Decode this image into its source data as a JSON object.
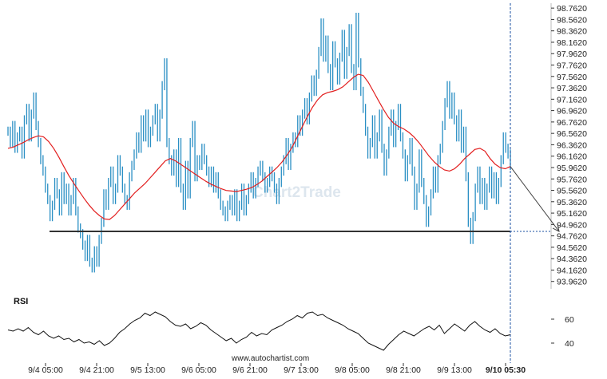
{
  "chart_data": {
    "type": "bar",
    "title": "",
    "watermark": "Chart2Trade",
    "website": "www.autochartist.com",
    "colors": {
      "bars": "#2a8fc4",
      "moving_average": "#e21f1f",
      "support_line": "#333333",
      "projection_arrow": "#444444",
      "projection_guide": "#1a4fa0"
    },
    "price_axis": {
      "range": [
        93.86,
        98.82
      ],
      "ticks": [
        "98.7620",
        "98.5620",
        "98.3620",
        "98.1620",
        "97.9620",
        "97.7620",
        "97.5620",
        "97.3620",
        "97.1620",
        "96.9620",
        "96.7620",
        "96.5620",
        "96.3620",
        "96.1620",
        "95.9620",
        "95.7620",
        "95.5620",
        "95.3620",
        "95.1620",
        "94.9620",
        "94.7620",
        "94.5620",
        "94.3620",
        "94.1620",
        "93.9620"
      ]
    },
    "time_axis": {
      "labels": [
        "9/4 05:00",
        "9/4 21:00",
        "9/5 13:00",
        "9/6 05:00",
        "9/6 21:00",
        "9/7 13:00",
        "9/8 05:00",
        "9/8 21:00",
        "9/9 13:00",
        "9/10 05:30"
      ],
      "last_label_bold": true
    },
    "support_level": 94.84,
    "projection": {
      "start_price": 95.98,
      "target_price": 94.84
    },
    "price_series": [
      96.6,
      96.4,
      96.7,
      96.3,
      96.5,
      96.6,
      96.2,
      96.8,
      97.0,
      96.5,
      96.9,
      97.2,
      96.7,
      96.4,
      96.1,
      95.9,
      95.6,
      95.4,
      95.1,
      95.3,
      95.7,
      95.5,
      95.2,
      95.8,
      95.4,
      95.6,
      95.2,
      95.4,
      95.7,
      95.2,
      94.9,
      94.8,
      94.6,
      94.4,
      94.7,
      94.3,
      94.2,
      94.5,
      94.3,
      94.7,
      95.0,
      95.5,
      95.3,
      95.7,
      95.9,
      95.4,
      95.6,
      96.1,
      95.9,
      95.6,
      95.4,
      95.3,
      95.8,
      96.0,
      96.2,
      96.5,
      96.3,
      96.8,
      96.5,
      96.9,
      96.4,
      96.6,
      96.8,
      97.0,
      96.5,
      96.9,
      97.4,
      97.8,
      96.4,
      96.1,
      95.9,
      96.2,
      95.7,
      96.4,
      95.6,
      95.3,
      96.0,
      95.5,
      96.4,
      96.7,
      95.8,
      96.1,
      96.0,
      96.3,
      96.1,
      95.9,
      95.7,
      95.9,
      95.6,
      95.8,
      95.5,
      95.3,
      95.2,
      95.1,
      95.3,
      95.4,
      95.2,
      95.5,
      95.1,
      95.3,
      95.6,
      95.2,
      95.4,
      95.6,
      95.8,
      95.5,
      95.7,
      95.9,
      96.0,
      95.8,
      95.6,
      95.7,
      95.9,
      95.8,
      95.6,
      95.4,
      95.7,
      95.9,
      96.1,
      96.4,
      96.0,
      96.3,
      96.5,
      96.4,
      96.8,
      96.6,
      96.9,
      97.1,
      96.8,
      97.2,
      97.5,
      97.3,
      97.6,
      98.0,
      98.5,
      97.9,
      98.2,
      97.7,
      97.4,
      98.1,
      97.8,
      97.5,
      97.9,
      98.3,
      97.6,
      98.0,
      98.4,
      97.7,
      97.4,
      98.6,
      97.8,
      97.3,
      97.0,
      96.6,
      96.2,
      96.4,
      96.8,
      96.2,
      96.5,
      96.9,
      96.3,
      95.9,
      96.2,
      96.6,
      96.9,
      96.4,
      96.7,
      97.0,
      96.5,
      96.2,
      95.8,
      96.1,
      96.4,
      95.9,
      95.3,
      95.6,
      96.2,
      95.7,
      95.4,
      95.0,
      95.2,
      95.5,
      95.9,
      95.6,
      96.1,
      96.3,
      96.7,
      97.1,
      97.4,
      96.9,
      97.2,
      96.8,
      96.5,
      96.9,
      96.3,
      96.6,
      95.8,
      95.0,
      94.7,
      95.1,
      95.6,
      95.9,
      95.4,
      95.7,
      95.3,
      95.6,
      95.9,
      95.5,
      95.8,
      95.4,
      95.7,
      96.1,
      96.5,
      96.3,
      96.2,
      96.0
    ],
    "ma_series": [
      96.3,
      96.32,
      96.36,
      96.4,
      96.45,
      96.49,
      96.52,
      96.5,
      96.42,
      96.3,
      96.15,
      95.98,
      95.82,
      95.68,
      95.55,
      95.42,
      95.3,
      95.2,
      95.12,
      95.06,
      95.05,
      95.12,
      95.22,
      95.32,
      95.42,
      95.52,
      95.6,
      95.68,
      95.78,
      95.88,
      95.98,
      96.08,
      96.12,
      96.08,
      96.02,
      95.96,
      95.9,
      95.84,
      95.78,
      95.72,
      95.67,
      95.63,
      95.59,
      95.56,
      95.55,
      95.54,
      95.56,
      95.58,
      95.61,
      95.66,
      95.72,
      95.8,
      95.88,
      95.96,
      96.06,
      96.18,
      96.32,
      96.5,
      96.68,
      96.86,
      97.02,
      97.15,
      97.24,
      97.28,
      97.3,
      97.33,
      97.38,
      97.46,
      97.54,
      97.6,
      97.58,
      97.46,
      97.3,
      97.14,
      96.98,
      96.84,
      96.74,
      96.68,
      96.64,
      96.58,
      96.5,
      96.4,
      96.28,
      96.16,
      96.06,
      95.98,
      95.92,
      95.9,
      95.94,
      96.02,
      96.12,
      96.2,
      96.28,
      96.3,
      96.25,
      96.12,
      96.02,
      95.96,
      95.94,
      95.98
    ],
    "rsi": {
      "title": "RSI",
      "ticks": [
        60,
        40
      ],
      "range": [
        30,
        70
      ],
      "values": [
        51,
        50,
        52,
        50,
        53,
        49,
        47,
        50,
        46,
        44,
        46,
        43,
        44,
        41,
        43,
        40,
        41,
        39,
        42,
        38,
        40,
        44,
        49,
        52,
        56,
        59,
        61,
        65,
        63,
        66,
        64,
        62,
        58,
        55,
        54,
        56,
        52,
        54,
        57,
        55,
        51,
        48,
        45,
        42,
        44,
        40,
        43,
        45,
        49,
        46,
        48,
        47,
        51,
        53,
        55,
        58,
        60,
        63,
        61,
        65,
        66,
        63,
        64,
        61,
        59,
        57,
        55,
        52,
        50,
        48,
        44,
        40,
        38,
        36,
        34,
        39,
        43,
        47,
        50,
        48,
        46,
        49,
        52,
        54,
        51,
        55,
        48,
        52,
        56,
        53,
        50,
        55,
        58,
        54,
        51,
        49,
        52,
        48,
        46,
        47
      ]
    }
  }
}
